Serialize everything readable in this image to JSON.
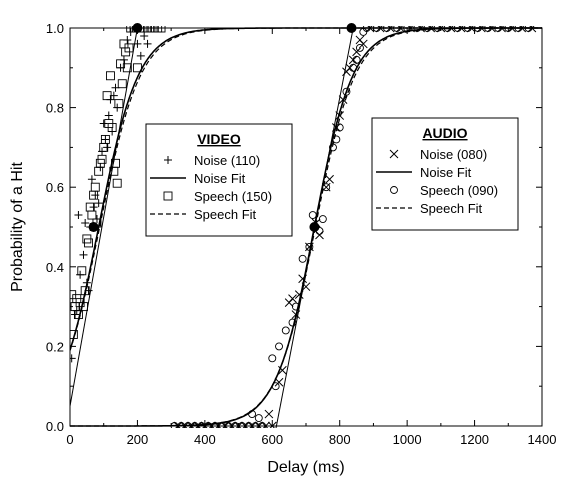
{
  "chart_data": {
    "type": "scatter",
    "xlabel": "Delay (ms)",
    "ylabel": "Probability of a Hit",
    "xlim": [
      0,
      1400
    ],
    "ylim": [
      0,
      1.0
    ],
    "xticks": [
      0,
      200,
      400,
      600,
      800,
      1000,
      1200,
      1400
    ],
    "yticks": [
      0.0,
      0.2,
      0.4,
      0.6,
      0.8,
      1.0
    ],
    "xtick_labels": [
      "0",
      "200",
      "400",
      "600",
      "800",
      "1000",
      "1200",
      "1400"
    ],
    "ytick_labels": [
      "0.0",
      "0.2",
      "0.4",
      "0.6",
      "0.8",
      "1.0"
    ],
    "grid": false,
    "legends": [
      {
        "title": "VIDEO",
        "placement": "center-left",
        "entries": [
          {
            "label": "Noise (110)",
            "marker": "plus"
          },
          {
            "label": "Noise Fit",
            "line": "solid"
          },
          {
            "label": "Speech (150)",
            "marker": "square"
          },
          {
            "label": "Speech Fit",
            "line": "dashed"
          }
        ]
      },
      {
        "title": "AUDIO",
        "placement": "center-right",
        "entries": [
          {
            "label": "Noise (080)",
            "marker": "cross"
          },
          {
            "label": "Noise Fit",
            "line": "solid"
          },
          {
            "label": "Speech (090)",
            "marker": "circle"
          },
          {
            "label": "Speech Fit",
            "line": "dashed"
          }
        ]
      }
    ],
    "series": [
      {
        "name": "Noise (110)",
        "group": "video",
        "marker": "plus",
        "points": [
          [
            5,
            0.17
          ],
          [
            15,
            0.28
          ],
          [
            20,
            0.29
          ],
          [
            25,
            0.53
          ],
          [
            30,
            0.38
          ],
          [
            40,
            0.43
          ],
          [
            45,
            0.51
          ],
          [
            50,
            0.36
          ],
          [
            55,
            0.34
          ],
          [
            60,
            0.5
          ],
          [
            65,
            0.62
          ],
          [
            70,
            0.55
          ],
          [
            75,
            0.58
          ],
          [
            80,
            0.52
          ],
          [
            85,
            0.56
          ],
          [
            90,
            0.65
          ],
          [
            95,
            0.69
          ],
          [
            100,
            0.76
          ],
          [
            105,
            0.72
          ],
          [
            110,
            0.7
          ],
          [
            115,
            0.78
          ],
          [
            120,
            0.82
          ],
          [
            125,
            0.74
          ],
          [
            130,
            0.83
          ],
          [
            135,
            0.85
          ],
          [
            140,
            0.8
          ],
          [
            150,
            0.9
          ],
          [
            160,
            0.92
          ],
          [
            170,
            0.97
          ],
          [
            185,
            1.0
          ],
          [
            200,
            0.96
          ],
          [
            210,
            0.93
          ],
          [
            220,
            0.98
          ],
          [
            230,
            0.96
          ],
          [
            180,
            0.99
          ],
          [
            195,
            1.0
          ]
        ]
      },
      {
        "name": "Speech (150)",
        "group": "video",
        "marker": "square",
        "points": [
          [
            5,
            0.33
          ],
          [
            10,
            0.23
          ],
          [
            15,
            0.3
          ],
          [
            20,
            0.32
          ],
          [
            25,
            0.28
          ],
          [
            30,
            0.31
          ],
          [
            35,
            0.39
          ],
          [
            40,
            0.3
          ],
          [
            45,
            0.34
          ],
          [
            50,
            0.47
          ],
          [
            55,
            0.46
          ],
          [
            60,
            0.55
          ],
          [
            65,
            0.53
          ],
          [
            70,
            0.58
          ],
          [
            75,
            0.6
          ],
          [
            80,
            0.51
          ],
          [
            85,
            0.64
          ],
          [
            90,
            0.66
          ],
          [
            95,
            0.67
          ],
          [
            100,
            0.7
          ],
          [
            105,
            0.72
          ],
          [
            110,
            0.83
          ],
          [
            115,
            0.76
          ],
          [
            120,
            0.88
          ],
          [
            125,
            0.75
          ],
          [
            130,
            0.64
          ],
          [
            135,
            0.66
          ],
          [
            140,
            0.61
          ],
          [
            145,
            0.81
          ],
          [
            150,
            0.91
          ],
          [
            155,
            0.86
          ],
          [
            160,
            0.96
          ],
          [
            165,
            0.94
          ],
          [
            170,
            0.9
          ],
          [
            175,
            0.95
          ],
          [
            180,
            1.0
          ],
          [
            190,
            1.0
          ],
          [
            200,
            0.9
          ],
          [
            210,
            1.0
          ],
          [
            220,
            1.0
          ],
          [
            230,
            1.0
          ],
          [
            240,
            1.0
          ],
          [
            250,
            1.0
          ],
          [
            260,
            1.0
          ],
          [
            270,
            1.0
          ]
        ]
      },
      {
        "name": "Noise (080)",
        "group": "audio",
        "marker": "cross",
        "points": [
          [
            320,
            0
          ],
          [
            340,
            0
          ],
          [
            360,
            0
          ],
          [
            380,
            0
          ],
          [
            400,
            0
          ],
          [
            420,
            0
          ],
          [
            440,
            0
          ],
          [
            460,
            0
          ],
          [
            480,
            0
          ],
          [
            500,
            0
          ],
          [
            520,
            0
          ],
          [
            540,
            0
          ],
          [
            560,
            0
          ],
          [
            580,
            0
          ],
          [
            600,
            0
          ],
          [
            590,
            0.03
          ],
          [
            620,
            0.11
          ],
          [
            630,
            0.14
          ],
          [
            650,
            0.31
          ],
          [
            660,
            0.32
          ],
          [
            670,
            0.28
          ],
          [
            680,
            0.33
          ],
          [
            690,
            0.37
          ],
          [
            700,
            0.35
          ],
          [
            710,
            0.45
          ],
          [
            730,
            0.51
          ],
          [
            740,
            0.48
          ],
          [
            760,
            0.6
          ],
          [
            770,
            0.62
          ],
          [
            790,
            0.75
          ],
          [
            800,
            0.78
          ],
          [
            810,
            0.82
          ],
          [
            820,
            0.89
          ],
          [
            830,
            0.9
          ],
          [
            840,
            0.92
          ],
          [
            850,
            0.94
          ],
          [
            860,
            0.97
          ],
          [
            870,
            0.96
          ],
          [
            890,
            1.0
          ],
          [
            920,
            1.0
          ],
          [
            950,
            1.0
          ],
          [
            980,
            1.0
          ],
          [
            1010,
            1.0
          ],
          [
            1040,
            1.0
          ],
          [
            1070,
            1.0
          ],
          [
            1100,
            1.0
          ],
          [
            1130,
            1.0
          ],
          [
            1160,
            1.0
          ],
          [
            1190,
            1.0
          ],
          [
            1220,
            1.0
          ],
          [
            1250,
            1.0
          ],
          [
            1280,
            1.0
          ],
          [
            1310,
            1.0
          ],
          [
            1340,
            1.0
          ],
          [
            1370,
            1.0
          ]
        ]
      },
      {
        "name": "Speech (090)",
        "group": "audio",
        "marker": "circle",
        "points": [
          [
            310,
            0
          ],
          [
            330,
            0
          ],
          [
            350,
            0
          ],
          [
            370,
            0
          ],
          [
            390,
            0
          ],
          [
            410,
            0
          ],
          [
            430,
            0
          ],
          [
            450,
            0
          ],
          [
            470,
            0
          ],
          [
            490,
            0
          ],
          [
            510,
            0
          ],
          [
            530,
            0
          ],
          [
            550,
            0
          ],
          [
            570,
            0
          ],
          [
            540,
            0.03
          ],
          [
            560,
            0.02
          ],
          [
            600,
            0.17
          ],
          [
            610,
            0.1
          ],
          [
            620,
            0.2
          ],
          [
            640,
            0.24
          ],
          [
            660,
            0.26
          ],
          [
            670,
            0.3
          ],
          [
            690,
            0.42
          ],
          [
            710,
            0.45
          ],
          [
            720,
            0.53
          ],
          [
            740,
            0.49
          ],
          [
            750,
            0.52
          ],
          [
            760,
            0.6
          ],
          [
            780,
            0.7
          ],
          [
            790,
            0.72
          ],
          [
            800,
            0.75
          ],
          [
            820,
            0.84
          ],
          [
            840,
            0.9
          ],
          [
            850,
            0.92
          ],
          [
            860,
            0.95
          ],
          [
            870,
            0.99
          ],
          [
            880,
            1.0
          ],
          [
            910,
            1.0
          ],
          [
            940,
            1.0
          ],
          [
            970,
            1.0
          ],
          [
            1000,
            1.0
          ],
          [
            1030,
            1.0
          ],
          [
            1060,
            1.0
          ],
          [
            1090,
            1.0
          ],
          [
            1120,
            1.0
          ],
          [
            1150,
            1.0
          ],
          [
            1180,
            1.0
          ],
          [
            1210,
            1.0
          ],
          [
            1240,
            1.0
          ],
          [
            1270,
            1.0
          ],
          [
            1300,
            1.0
          ],
          [
            1330,
            1.0
          ],
          [
            1360,
            1.0
          ]
        ]
      }
    ],
    "fits": [
      {
        "group": "video",
        "name": "Noise Fit",
        "style": "solid",
        "x50": 85,
        "slope": 0.017
      },
      {
        "group": "video",
        "name": "Speech Fit",
        "style": "dashed",
        "x50": 88,
        "slope": 0.0165
      },
      {
        "group": "audio",
        "name": "Noise Fit",
        "style": "solid",
        "x50": 725,
        "slope": 0.0175
      },
      {
        "group": "audio",
        "name": "Speech Fit",
        "style": "dashed",
        "x50": 728,
        "slope": 0.017
      }
    ],
    "tangent_lines": [
      {
        "group": "video",
        "from": [
          0,
          0.05
        ],
        "to": [
          200,
          1.0
        ]
      },
      {
        "group": "audio",
        "from": [
          610,
          -0.01
        ],
        "to": [
          840,
          1.0
        ]
      }
    ],
    "key_points": [
      {
        "group": "video",
        "x": 70,
        "y": 0.5
      },
      {
        "group": "video",
        "x": 200,
        "y": 1.0
      },
      {
        "group": "audio",
        "x": 725,
        "y": 0.5
      },
      {
        "group": "audio",
        "x": 835,
        "y": 1.0
      }
    ]
  }
}
